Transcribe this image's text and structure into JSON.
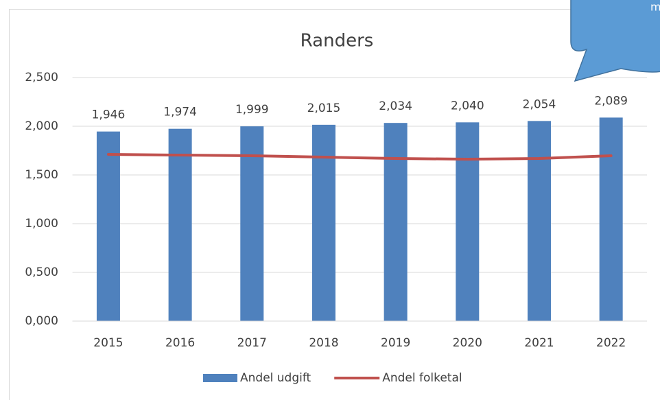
{
  "chart_data": {
    "type": "bar",
    "title": "Randers",
    "categories": [
      "2015",
      "2016",
      "2017",
      "2018",
      "2019",
      "2020",
      "2021",
      "2022"
    ],
    "series": [
      {
        "name": "Andel udgift",
        "type": "bar",
        "color": "#4f81bd",
        "values": [
          1.946,
          1.974,
          1.999,
          2.015,
          2.034,
          2.04,
          2.054,
          2.089
        ],
        "value_labels": [
          "1,946",
          "1,974",
          "1,999",
          "2,015",
          "2,034",
          "2,040",
          "2,054",
          "2,089"
        ]
      },
      {
        "name": "Andel folketal",
        "type": "line",
        "color": "#c0504d",
        "values": [
          1.711,
          1.704,
          1.697,
          1.683,
          1.669,
          1.662,
          1.669,
          1.697
        ]
      }
    ],
    "ylim": [
      0,
      2.5
    ],
    "yticks": [
      {
        "value": 0,
        "label": "0,000"
      },
      {
        "value": 0.5,
        "label": "0,500"
      },
      {
        "value": 1,
        "label": "1,000"
      },
      {
        "value": 1.5,
        "label": "1,500"
      },
      {
        "value": 2,
        "label": "2,000"
      },
      {
        "value": 2.5,
        "label": "2,500"
      }
    ],
    "grid": true,
    "legend": "bottom",
    "annotation": "me"
  }
}
